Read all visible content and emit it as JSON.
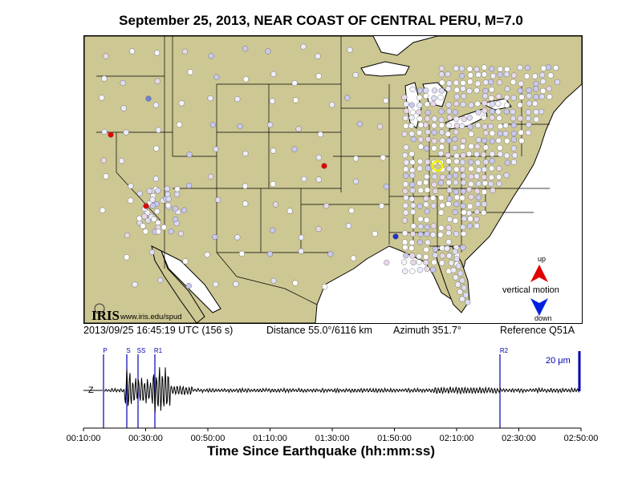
{
  "title": "September 25, 2013, NEAR COAST OF CENTRAL PERU, M=7.0",
  "map": {
    "logo_text": "IRIS",
    "logo_url": "www.iris.edu/spud",
    "legend": {
      "up": "up",
      "label": "vertical motion",
      "down": "down",
      "up_color": "#e00000",
      "down_color": "#0020e0"
    },
    "colors": {
      "land": "#cdc793",
      "water": "#ffffff",
      "border": "#000000",
      "station_neutral": "#e6e6ff",
      "station_strong_up": "#e00000",
      "station_strong_down": "#2030d0",
      "reference_marker": "#f0f000"
    }
  },
  "info": {
    "time": "2013/09/25 16:45:19 UTC (156 s)",
    "distance": "Distance  55.0°/6116 km",
    "azimuth": "Azimuth 351.7°",
    "reference": "Reference Q51A"
  },
  "seismogram": {
    "channel": "Z",
    "scale_label": "20 μm",
    "phases": [
      "P",
      "S",
      "SS",
      "R1",
      "R2"
    ],
    "phase_color": "#0000b0",
    "xlabel": "Time Since Earthquake (hh:mm:ss)",
    "ticks": [
      "00:10:00",
      "00:30:00",
      "00:50:00",
      "01:10:00",
      "01:30:00",
      "01:50:00",
      "02:10:00",
      "02:30:00",
      "02:50:00"
    ]
  }
}
